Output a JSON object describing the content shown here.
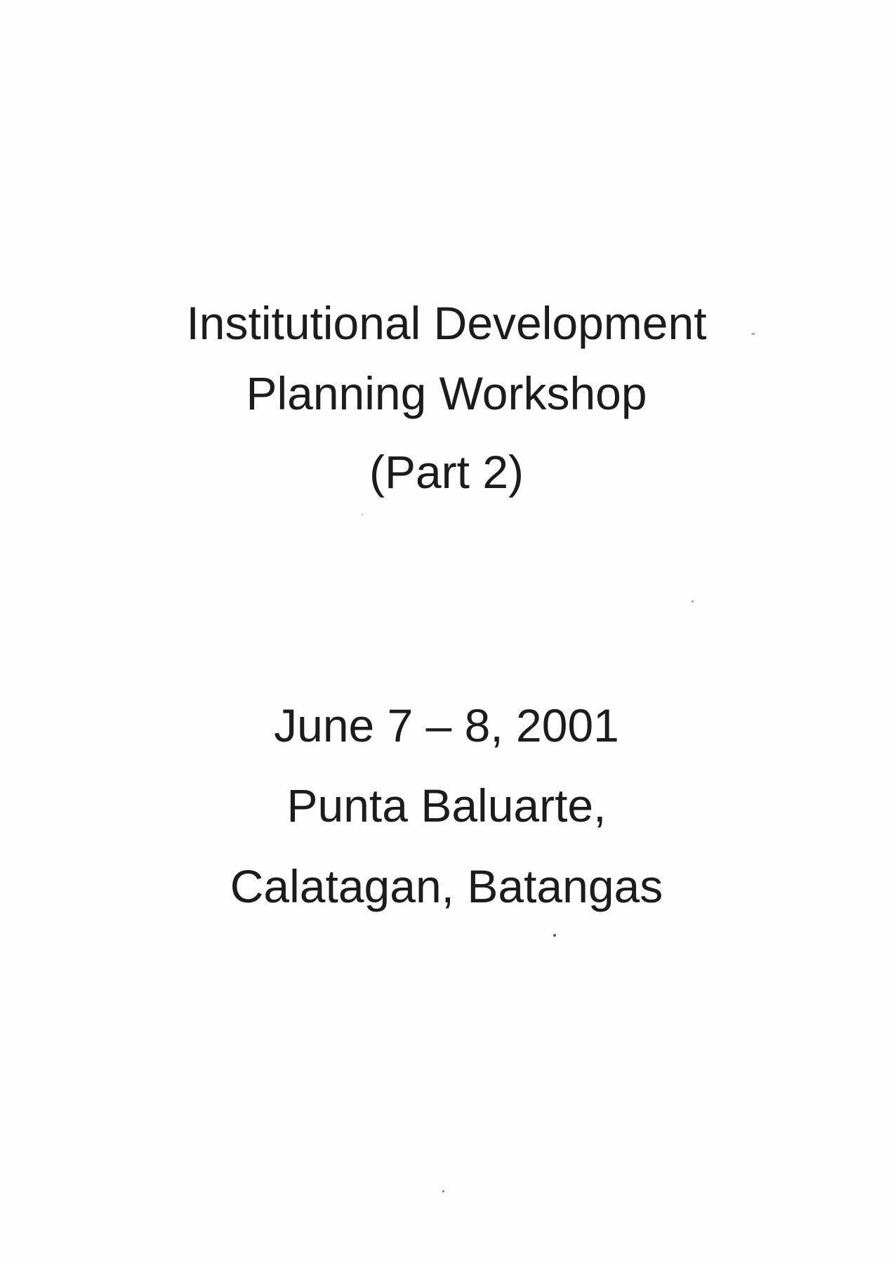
{
  "title": {
    "line1": "Institutional Development",
    "line2": "Planning Workshop",
    "line3": "(Part 2)"
  },
  "event": {
    "date": "June 7 – 8, 2001",
    "venue_line1": "Punta Baluarte,",
    "venue_line2": "Calatagan, Batangas"
  },
  "colors": {
    "text": "#1c1c1c",
    "paper": "#fefefe"
  }
}
